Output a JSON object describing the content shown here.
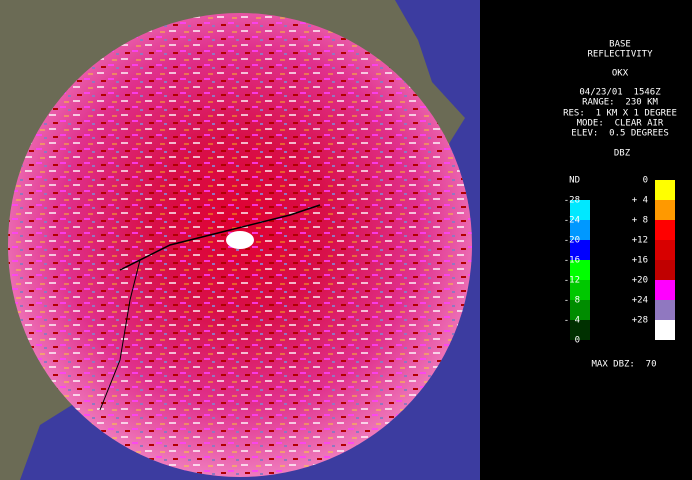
{
  "panel": {
    "product": "BASE",
    "product_name": "REFLECTIVITY",
    "station": "OKX",
    "datetime": "04/23/01  1546Z",
    "range": "RANGE:  230 KM",
    "resolution": "RES:  1 KM X 1 DEGREE",
    "mode": "MODE:  CLEAR AIR",
    "elevation": "ELEV:  0.5 DEGREES",
    "unit": "DBZ",
    "max": "MAX DBZ:  70"
  },
  "legend": {
    "left": [
      {
        "label": "ND"
      },
      {
        "label": "-28",
        "color": "#00e8ff"
      },
      {
        "label": "-24",
        "color": "#0098ff"
      },
      {
        "label": "-20",
        "color": "#0000ff"
      },
      {
        "label": "-16",
        "color": "#00ff00"
      },
      {
        "label": "-12",
        "color": "#00c800"
      },
      {
        "label": "- 8",
        "color": "#008c00"
      },
      {
        "label": "- 4",
        "color": "#003000"
      },
      {
        "label": "0"
      }
    ],
    "right": [
      {
        "label": "0",
        "color": "#ffff00"
      },
      {
        "label": "+ 4",
        "color": "#ff9900"
      },
      {
        "label": "+ 8",
        "color": "#ff0000"
      },
      {
        "label": "+12",
        "color": "#d80000"
      },
      {
        "label": "+16",
        "color": "#c00000"
      },
      {
        "label": "+20",
        "color": "#ff00ff"
      },
      {
        "label": "+24",
        "color": "#9078c0"
      },
      {
        "label": "+28",
        "color": "#ffffff"
      }
    ]
  }
}
